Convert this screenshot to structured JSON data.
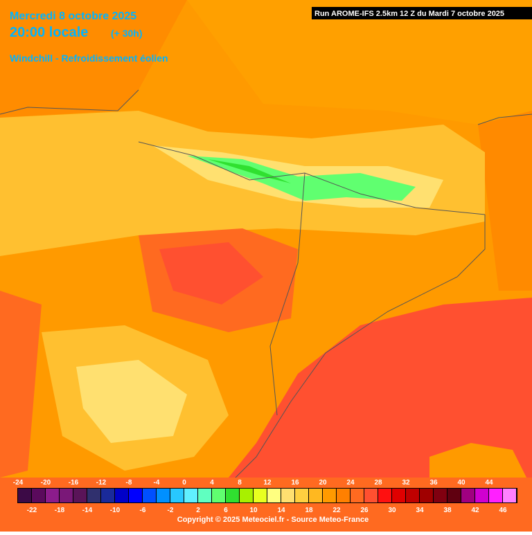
{
  "header": {
    "date": "Mercredi 8 octobre 2025",
    "time": "20:00 locale",
    "lead": "(+ 30h)",
    "field": "Windchill - Refroidissement éolien"
  },
  "run": "Run AROME-IFS 2.5km 12 Z du Mardi 7 octobre 2025",
  "legend": {
    "ticks": [
      -24,
      -22,
      -20,
      -18,
      -16,
      -14,
      -12,
      -10,
      -8,
      -6,
      -4,
      -2,
      0,
      2,
      4,
      6,
      8,
      10,
      12,
      14,
      16,
      18,
      20,
      22,
      24,
      26,
      28,
      30,
      32,
      34,
      36,
      38,
      40,
      42,
      44,
      46
    ],
    "colors": [
      "#3c0a46",
      "#5a0a5c",
      "#8c1c8c",
      "#7a1878",
      "#5a1458",
      "#30306e",
      "#1a2a9a",
      "#0000c8",
      "#0000ff",
      "#0050ff",
      "#0090ff",
      "#28c8ff",
      "#60f0ff",
      "#60ffc0",
      "#60ff70",
      "#30e030",
      "#a8f000",
      "#e8ff20",
      "#ffff80",
      "#ffe070",
      "#ffd040",
      "#ffb820",
      "#ff9a00",
      "#ff8000",
      "#ff6a20",
      "#ff5030",
      "#ff1010",
      "#e00000",
      "#c00000",
      "#a00000",
      "#800010",
      "#600010",
      "#a00080",
      "#d000d0",
      "#ff20ff",
      "#ff80ff"
    ]
  },
  "copyright": "Copyright © 2025 Meteociel.fr - Source Meteo-France"
}
